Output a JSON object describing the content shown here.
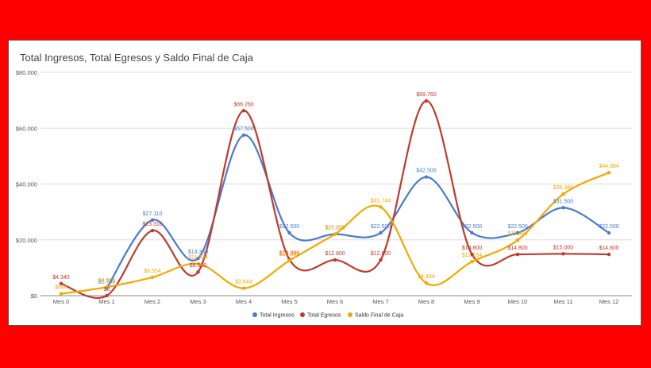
{
  "chart_data": {
    "type": "line",
    "title": "Total Ingresos, Total Egresos y Saldo Final de Caja",
    "categories": [
      "Mes 0",
      "Mes 1",
      "Mes 2",
      "Mes 3",
      "Mes 4",
      "Mes 5",
      "Mes 6",
      "Mes 7",
      "Mes 8",
      "Mes 9",
      "Mes 10",
      "Mes 11",
      "Mes 12"
    ],
    "ylim": [
      0,
      80000
    ],
    "yticks": [
      0,
      20000,
      40000,
      60000,
      80000
    ],
    "ytick_labels": [
      "$0",
      "$20.000",
      "$40.000",
      "$60.000",
      "$80.000"
    ],
    "grid": true,
    "legend_position": "bottom",
    "series": [
      {
        "name": "Total Ingresos",
        "color": "#4a7bd0",
        "values": [
          null,
          2750,
          27110,
          13350,
          57500,
          22500,
          22055,
          22500,
          42500,
          22500,
          22500,
          31500,
          22500
        ],
        "labels": [
          "",
          "$2.750",
          "$27.110",
          "$13.350",
          "$57.500",
          "$22.500",
          "$22.055",
          "$22.500",
          "$42.500",
          "$22.500",
          "$22.500",
          "$31.500",
          "$22.500"
        ]
      },
      {
        "name": "Total Egresos",
        "color": "#c0392b",
        "values": [
          4340,
          0,
          23316,
          8500,
          66260,
          13000,
          12800,
          12800,
          69760,
          14800,
          14800,
          15000,
          14800
        ],
        "labels": [
          "$4.340",
          "$0",
          "$23.316",
          "$8.500",
          "$66.260",
          "$13.000",
          "$12.800",
          "$12.800",
          "$69.760",
          "$14.800",
          "$14.800",
          "$15.000",
          "$14.800"
        ]
      },
      {
        "name": "Saldo Final de Caja",
        "color": "#f2a900",
        "values": [
          660,
          3070,
          6554,
          11404,
          2644,
          12555,
          22055,
          31744,
          4484,
          12184,
          19884,
          36384,
          44084
        ],
        "labels": [
          "$660",
          "$3.070",
          "$6.554",
          "$11.404",
          "$2.644",
          "$12.555",
          "$22.055",
          "$31.744",
          "$4.484",
          "$12.184",
          "$19.884",
          "$36.384",
          "$44.084"
        ]
      }
    ]
  }
}
